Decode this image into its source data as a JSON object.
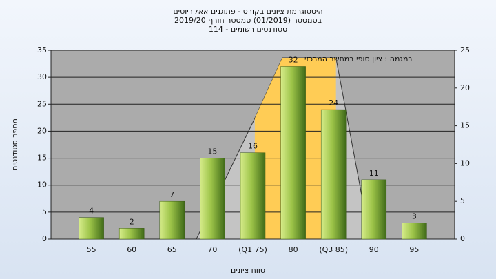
{
  "chart_data": {
    "type": "bar",
    "title": "היסטוגרמת ציונים בקורס - פתוגנים אאקריוטים",
    "subtitle": "בסמסטר (01/2019) סמסטר חורף 2019/20",
    "subtitle2": "סטודנטים רשומים - 114",
    "annotation": "במגמה : ציון סופי במחשב המרכזי",
    "y_label": "מספר סטודנטים",
    "x_label": "טווח ציונים",
    "categories": [
      "55",
      "60",
      "65",
      "70",
      "(Q1 75)",
      "80",
      "(Q3 85)",
      "90",
      "95"
    ],
    "values": [
      4,
      2,
      7,
      15,
      16,
      32,
      24,
      11,
      3
    ],
    "color": "#8fb83a",
    "ylim": [
      0,
      35
    ],
    "yticks": [
      0,
      5,
      10,
      15,
      20,
      25,
      30,
      35
    ],
    "y2lim": [
      0,
      25
    ],
    "y2ticks": [
      0,
      5,
      10,
      15,
      20,
      25
    ],
    "grid": true,
    "bands": [
      {
        "color": "#c4c4c4",
        "axis": "y2",
        "x": [
          2.6,
          4.05,
          4.73,
          6.06,
          6.9
        ],
        "values": [
          0,
          16,
          24,
          24,
          0
        ]
      },
      {
        "color": "#ffcc55",
        "axis": "y2",
        "x": [
          4.05,
          4.05,
          4.73,
          6.06,
          6.06
        ],
        "values": [
          0,
          16,
          24,
          24,
          0
        ]
      }
    ]
  }
}
